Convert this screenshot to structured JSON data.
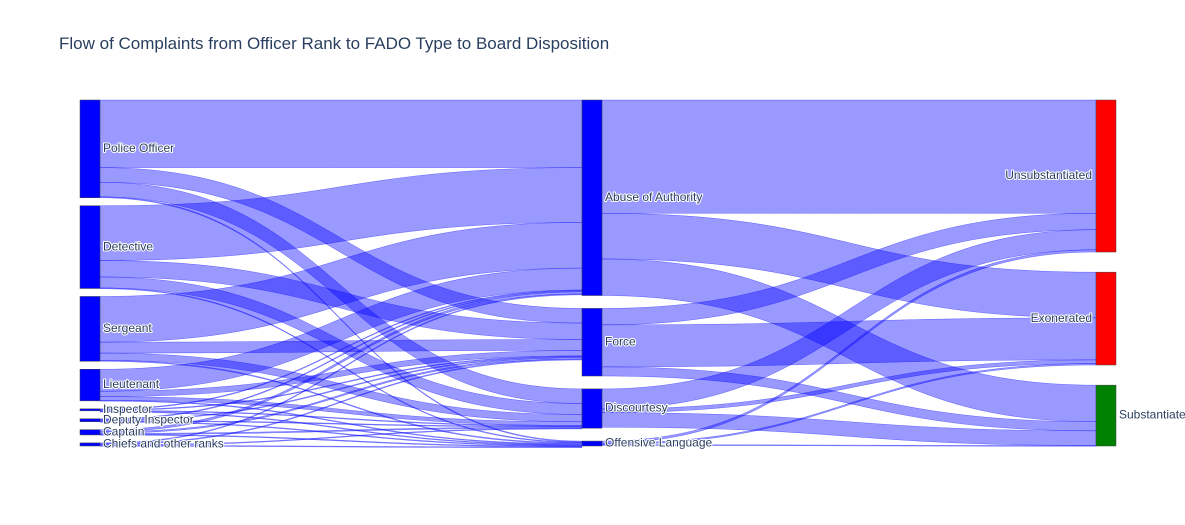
{
  "chart_data": {
    "type": "sankey",
    "title": "Flow of Complaints from Officer Rank to FADO Type to Board Disposition",
    "nodes": [
      {
        "id": "police_officer",
        "label": "Police Officer",
        "column": 0,
        "color": "#0000ff"
      },
      {
        "id": "detective",
        "label": "Detective",
        "column": 0,
        "color": "#0000ff"
      },
      {
        "id": "sergeant",
        "label": "Sergeant",
        "column": 0,
        "color": "#0000ff"
      },
      {
        "id": "lieutenant",
        "label": "Lieutenant",
        "column": 0,
        "color": "#0000ff"
      },
      {
        "id": "inspector",
        "label": "Inspector",
        "column": 0,
        "color": "#0000ff"
      },
      {
        "id": "deputy_inspector",
        "label": "Deputy Inspector",
        "column": 0,
        "color": "#0000ff"
      },
      {
        "id": "captain",
        "label": "Captain",
        "column": 0,
        "color": "#0000ff"
      },
      {
        "id": "chiefs",
        "label": "Chiefs and other ranks",
        "column": 0,
        "color": "#0000ff"
      },
      {
        "id": "abuse",
        "label": "Abuse of Authority",
        "column": 1,
        "color": "#0000ff"
      },
      {
        "id": "force",
        "label": "Force",
        "column": 1,
        "color": "#0000ff"
      },
      {
        "id": "discourtesy",
        "label": "Discourtesy",
        "column": 1,
        "color": "#0000ff"
      },
      {
        "id": "offensive",
        "label": "Offensive Language",
        "column": 1,
        "color": "#0000ff"
      },
      {
        "id": "unsub",
        "label": "Unsubstantiated",
        "column": 2,
        "color": "#ff0000"
      },
      {
        "id": "exon",
        "label": "Exonerated",
        "column": 2,
        "color": "#ff0000"
      },
      {
        "id": "subst",
        "label": "Substantiated",
        "column": 2,
        "color": "#008000"
      }
    ],
    "links": [
      {
        "source": "police_officer",
        "target": "abuse",
        "value": 37
      },
      {
        "source": "police_officer",
        "target": "force",
        "value": 8
      },
      {
        "source": "police_officer",
        "target": "discourtesy",
        "value": 8
      },
      {
        "source": "police_officer",
        "target": "offensive",
        "value": 0.5
      },
      {
        "source": "detective",
        "target": "abuse",
        "value": 30
      },
      {
        "source": "detective",
        "target": "force",
        "value": 9
      },
      {
        "source": "detective",
        "target": "discourtesy",
        "value": 6
      },
      {
        "source": "detective",
        "target": "offensive",
        "value": 0.3
      },
      {
        "source": "sergeant",
        "target": "abuse",
        "value": 25
      },
      {
        "source": "sergeant",
        "target": "force",
        "value": 6
      },
      {
        "source": "sergeant",
        "target": "discourtesy",
        "value": 4
      },
      {
        "source": "sergeant",
        "target": "offensive",
        "value": 0.5
      },
      {
        "source": "lieutenant",
        "target": "abuse",
        "value": 12
      },
      {
        "source": "lieutenant",
        "target": "force",
        "value": 3
      },
      {
        "source": "lieutenant",
        "target": "discourtesy",
        "value": 2
      },
      {
        "source": "lieutenant",
        "target": "offensive",
        "value": 0.3
      },
      {
        "source": "inspector",
        "target": "abuse",
        "value": 0.3
      },
      {
        "source": "inspector",
        "target": "force",
        "value": 0.2
      },
      {
        "source": "inspector",
        "target": "discourtesy",
        "value": 0.2
      },
      {
        "source": "inspector",
        "target": "offensive",
        "value": 0.2
      },
      {
        "source": "deputy_inspector",
        "target": "abuse",
        "value": 0.5
      },
      {
        "source": "deputy_inspector",
        "target": "force",
        "value": 0.5
      },
      {
        "source": "deputy_inspector",
        "target": "discourtesy",
        "value": 0.3
      },
      {
        "source": "deputy_inspector",
        "target": "offensive",
        "value": 0.3
      },
      {
        "source": "captain",
        "target": "abuse",
        "value": 1.2
      },
      {
        "source": "captain",
        "target": "force",
        "value": 0.8
      },
      {
        "source": "captain",
        "target": "discourtesy",
        "value": 0.6
      },
      {
        "source": "captain",
        "target": "offensive",
        "value": 0.3
      },
      {
        "source": "chiefs",
        "target": "abuse",
        "value": 0.5
      },
      {
        "source": "chiefs",
        "target": "force",
        "value": 0.5
      },
      {
        "source": "chiefs",
        "target": "discourtesy",
        "value": 0.4
      },
      {
        "source": "chiefs",
        "target": "offensive",
        "value": 0.3
      },
      {
        "source": "abuse",
        "target": "unsub",
        "value": 62
      },
      {
        "source": "abuse",
        "target": "exon",
        "value": 25
      },
      {
        "source": "abuse",
        "target": "subst",
        "value": 20
      },
      {
        "source": "force",
        "target": "unsub",
        "value": 9
      },
      {
        "source": "force",
        "target": "exon",
        "value": 23
      },
      {
        "source": "force",
        "target": "subst",
        "value": 5
      },
      {
        "source": "discourtesy",
        "target": "unsub",
        "value": 11
      },
      {
        "source": "discourtesy",
        "target": "exon",
        "value": 2
      },
      {
        "source": "discourtesy",
        "target": "subst",
        "value": 8
      },
      {
        "source": "offensive",
        "target": "unsub",
        "value": 1.2
      },
      {
        "source": "offensive",
        "target": "exon",
        "value": 0.8
      },
      {
        "source": "offensive",
        "target": "subst",
        "value": 0.3
      }
    ],
    "link_color": "#0000ff",
    "link_opacity": 0.4
  }
}
